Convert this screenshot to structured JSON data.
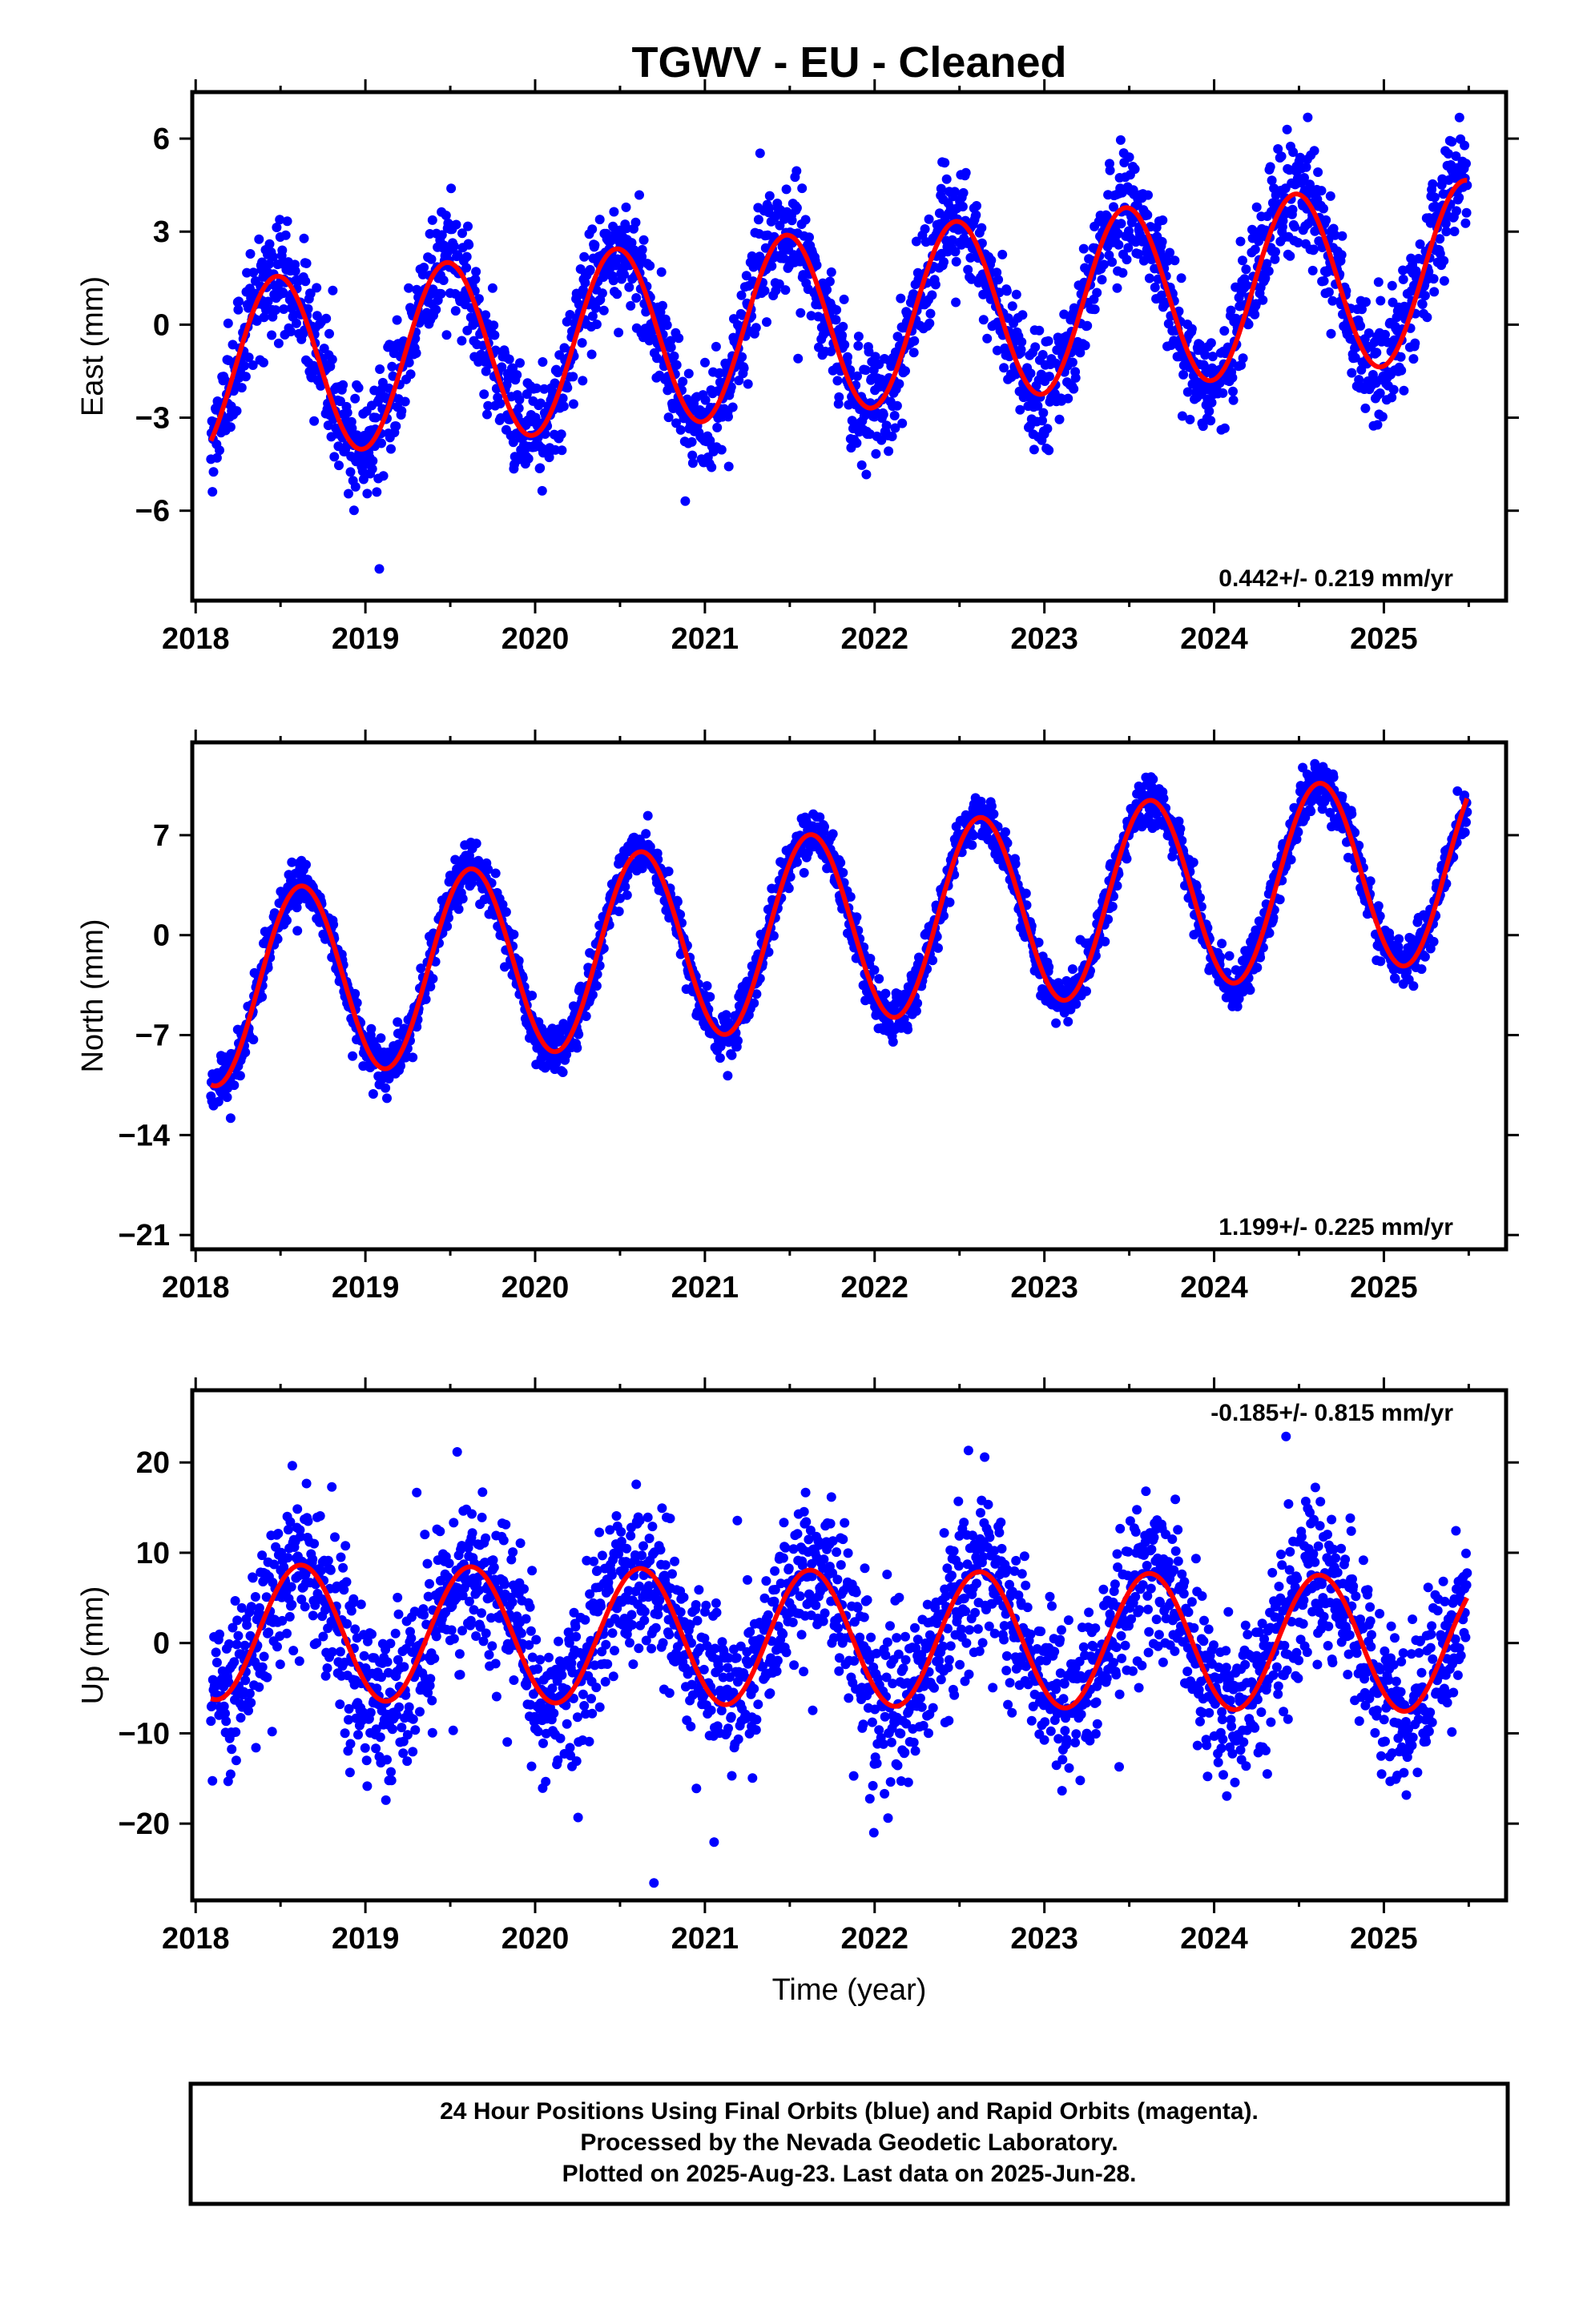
{
  "title": "TGWV  - EU - Cleaned",
  "xlabel": "Time (year)",
  "footer": [
    "24 Hour Positions Using Final Orbits (blue) and Rapid Orbits (magenta).",
    "Processed by the Nevada Geodetic Laboratory.",
    "Plotted on 2025-Aug-23. Last data on 2025-Jun-28."
  ],
  "colors": {
    "data": "#0000ff",
    "fit": "#ff0000",
    "axis": "#000000",
    "background": "#ffffff"
  },
  "chart_data": [
    {
      "type": "scatter",
      "panel": "east",
      "ylabel": "East (mm)",
      "xlim": [
        2017.98,
        2025.72
      ],
      "ylim": [
        -8.9,
        7.5
      ],
      "xticks": [
        2018,
        2019,
        2020,
        2021,
        2022,
        2023,
        2024,
        2025
      ],
      "yticks": [
        6,
        3,
        0,
        -3,
        -6
      ],
      "rate_text": "0.442+/- 0.219 mm/yr",
      "rate_position": "bottom-right",
      "data_start": 2018.09,
      "data_end": 2025.49,
      "fit_model": {
        "offset": -1.55,
        "rate": 0.442,
        "amplitude": 2.9,
        "phase_year": 2018.48,
        "reference_year": 2018.0
      },
      "scatter_sigma": 0.9,
      "series": [
        {
          "name": "",
          "kind": "points",
          "color": "#0000ff",
          "values_sample": [
            [
              2018.1,
              -3.4
            ],
            [
              2018.25,
              -1.2
            ],
            [
              2018.48,
              1.5
            ],
            [
              2018.7,
              -1.1
            ],
            [
              2018.95,
              -4.3
            ],
            [
              2019.2,
              -1.9
            ],
            [
              2019.48,
              1.9
            ],
            [
              2019.7,
              -0.5
            ],
            [
              2019.95,
              -3.9
            ],
            [
              2020.2,
              -1.3
            ],
            [
              2020.48,
              2.4
            ],
            [
              2020.7,
              0.0
            ],
            [
              2020.95,
              -3.4
            ],
            [
              2021.2,
              -0.7
            ],
            [
              2021.48,
              2.7
            ],
            [
              2021.7,
              0.3
            ],
            [
              2021.95,
              -3.0
            ],
            [
              2022.2,
              -0.2
            ],
            [
              2022.48,
              3.2
            ],
            [
              2022.7,
              0.8
            ],
            [
              2022.95,
              -2.6
            ],
            [
              2023.2,
              0.2
            ],
            [
              2023.48,
              3.6
            ],
            [
              2023.7,
              1.3
            ],
            [
              2023.95,
              -2.2
            ],
            [
              2024.2,
              0.7
            ],
            [
              2024.48,
              4.0
            ],
            [
              2024.7,
              1.6
            ],
            [
              2024.95,
              -1.7
            ],
            [
              2025.2,
              1.1
            ],
            [
              2025.45,
              4.3
            ]
          ]
        },
        {
          "name": "",
          "kind": "fit",
          "color": "#ff0000",
          "values_sample": [
            [
              2018.09,
              -3.2
            ],
            [
              2018.48,
              1.4
            ],
            [
              2018.98,
              -4.4
            ],
            [
              2019.48,
              1.8
            ],
            [
              2019.98,
              -4.0
            ],
            [
              2020.48,
              2.2
            ],
            [
              2020.98,
              -3.5
            ],
            [
              2021.48,
              2.7
            ],
            [
              2021.98,
              -3.1
            ],
            [
              2022.48,
              3.1
            ],
            [
              2022.98,
              -2.7
            ],
            [
              2023.48,
              3.6
            ],
            [
              2023.98,
              -2.2
            ],
            [
              2024.48,
              4.0
            ],
            [
              2024.98,
              -1.8
            ],
            [
              2025.49,
              4.4
            ]
          ]
        }
      ]
    },
    {
      "type": "scatter",
      "panel": "north",
      "ylabel": "North (mm)",
      "xlim": [
        2017.98,
        2025.72
      ],
      "ylim": [
        -22.0,
        13.5
      ],
      "xticks": [
        2018,
        2019,
        2020,
        2021,
        2022,
        2023,
        2024,
        2025
      ],
      "yticks": [
        7,
        0,
        -7,
        -14,
        -21
      ],
      "rate_text": "1.199+/- 0.225 mm/yr",
      "rate_position": "bottom-right",
      "data_start": 2018.09,
      "data_end": 2025.49,
      "fit_model": {
        "offset": -4.0,
        "rate": 1.199,
        "amplitude": 6.7,
        "phase_year": 2018.62,
        "reference_year": 2018.0
      },
      "scatter_sigma": 0.85,
      "series": [
        {
          "name": "",
          "kind": "points",
          "color": "#0000ff",
          "values_sample": [
            [
              2018.1,
              -10.5
            ],
            [
              2018.3,
              -4.5
            ],
            [
              2018.62,
              3.5
            ],
            [
              2018.9,
              -2.5
            ],
            [
              2019.12,
              -9.6
            ],
            [
              2019.4,
              -1.0
            ],
            [
              2019.62,
              4.5
            ],
            [
              2019.9,
              -1.5
            ],
            [
              2020.12,
              -8.4
            ],
            [
              2020.4,
              0.0
            ],
            [
              2020.62,
              5.8
            ],
            [
              2020.9,
              -0.5
            ],
            [
              2021.12,
              -7.2
            ],
            [
              2021.4,
              1.2
            ],
            [
              2021.62,
              7.0
            ],
            [
              2021.9,
              0.5
            ],
            [
              2022.12,
              -6.0
            ],
            [
              2022.4,
              2.5
            ],
            [
              2022.62,
              8.2
            ],
            [
              2022.9,
              2.0
            ],
            [
              2023.12,
              -4.8
            ],
            [
              2023.4,
              3.5
            ],
            [
              2023.62,
              9.3
            ],
            [
              2023.9,
              3.0
            ],
            [
              2024.12,
              -3.6
            ],
            [
              2024.4,
              4.8
            ],
            [
              2024.62,
              10.6
            ],
            [
              2024.9,
              4.0
            ],
            [
              2025.12,
              -2.4
            ],
            [
              2025.45,
              7.0
            ]
          ]
        },
        {
          "name": "",
          "kind": "fit",
          "color": "#ff0000",
          "values_sample": [
            [
              2018.09,
              -10.6
            ],
            [
              2018.62,
              3.4
            ],
            [
              2019.12,
              -9.4
            ],
            [
              2019.62,
              4.6
            ],
            [
              2020.12,
              -8.2
            ],
            [
              2020.62,
              5.8
            ],
            [
              2021.12,
              -7.0
            ],
            [
              2021.62,
              7.0
            ],
            [
              2022.12,
              -5.8
            ],
            [
              2022.62,
              8.2
            ],
            [
              2023.12,
              -4.6
            ],
            [
              2023.62,
              9.4
            ],
            [
              2024.12,
              -3.4
            ],
            [
              2024.62,
              10.6
            ],
            [
              2025.12,
              -2.2
            ],
            [
              2025.49,
              9.3
            ]
          ]
        }
      ]
    },
    {
      "type": "scatter",
      "panel": "up",
      "ylabel": "Up (mm)",
      "xlim": [
        2017.98,
        2025.72
      ],
      "ylim": [
        -28.5,
        28.0
      ],
      "xticks": [
        2018,
        2019,
        2020,
        2021,
        2022,
        2023,
        2024,
        2025
      ],
      "yticks": [
        20,
        10,
        0,
        -10,
        -20
      ],
      "rate_text": "-0.185+/- 0.815 mm/yr",
      "rate_position": "top-right",
      "data_start": 2018.09,
      "data_end": 2025.49,
      "fit_model": {
        "offset": 1.25,
        "rate": -0.185,
        "amplitude": 7.5,
        "phase_year": 2018.62,
        "reference_year": 2018.0
      },
      "scatter_sigma": 4.6,
      "series": [
        {
          "name": "",
          "kind": "points",
          "color": "#0000ff",
          "values_sample": [
            [
              2018.1,
              -6.0
            ],
            [
              2018.35,
              2.0
            ],
            [
              2018.62,
              10.0
            ],
            [
              2018.9,
              -1.0
            ],
            [
              2019.12,
              -7.0
            ],
            [
              2019.4,
              1.0
            ],
            [
              2019.62,
              12.0
            ],
            [
              2019.9,
              -2.0
            ],
            [
              2020.12,
              -8.0
            ],
            [
              2020.4,
              3.0
            ],
            [
              2020.62,
              9.0
            ],
            [
              2020.9,
              0.0
            ],
            [
              2021.12,
              -6.0
            ],
            [
              2021.4,
              2.0
            ],
            [
              2021.62,
              10.0
            ],
            [
              2021.9,
              -3.0
            ],
            [
              2022.12,
              -9.0
            ],
            [
              2022.4,
              1.0
            ],
            [
              2022.62,
              8.0
            ],
            [
              2022.9,
              -2.0
            ],
            [
              2023.12,
              -7.0
            ],
            [
              2023.4,
              2.0
            ],
            [
              2023.62,
              9.0
            ],
            [
              2023.9,
              -1.0
            ],
            [
              2024.12,
              -8.0
            ],
            [
              2024.4,
              1.0
            ],
            [
              2024.62,
              8.0
            ],
            [
              2024.9,
              -3.0
            ],
            [
              2025.12,
              -9.0
            ],
            [
              2025.45,
              4.0
            ]
          ]
        },
        {
          "name": "",
          "kind": "fit",
          "color": "#ff0000",
          "values_sample": [
            [
              2018.09,
              -5.8
            ],
            [
              2018.62,
              8.7
            ],
            [
              2019.12,
              -6.3
            ],
            [
              2019.62,
              8.5
            ],
            [
              2020.12,
              -6.5
            ],
            [
              2020.62,
              8.3
            ],
            [
              2021.12,
              -6.7
            ],
            [
              2021.62,
              8.1
            ],
            [
              2022.12,
              -6.9
            ],
            [
              2022.62,
              7.9
            ],
            [
              2023.12,
              -7.0
            ],
            [
              2023.62,
              7.8
            ],
            [
              2024.12,
              -7.2
            ],
            [
              2024.62,
              7.6
            ],
            [
              2025.12,
              -7.4
            ],
            [
              2025.49,
              3.5
            ]
          ]
        }
      ]
    }
  ]
}
